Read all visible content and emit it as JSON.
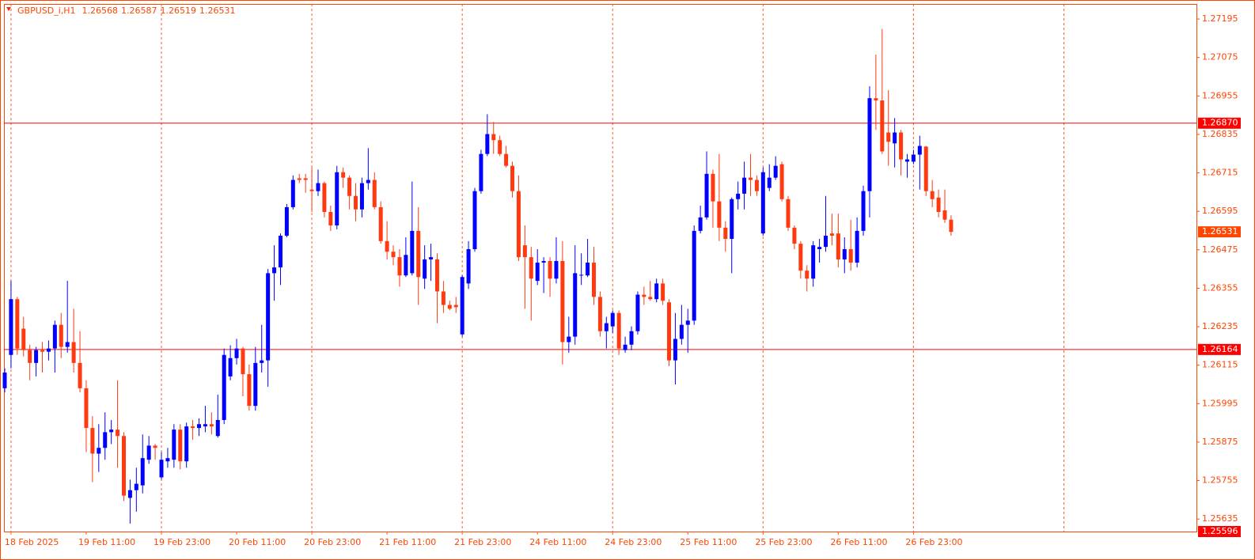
{
  "chart_data": {
    "type": "candlestick",
    "title": "GBPUSD_i,H1",
    "ohlc_info": [
      1.26568,
      1.26587,
      1.26519,
      1.26531
    ],
    "up_color": "#0000ff",
    "down_color": "#ff3a10",
    "grid_color": "#ff5a1f",
    "ylim": [
      1.25596,
      1.27242
    ],
    "yticks": [
      1.27195,
      1.27075,
      1.26955,
      {
        "value": 1.26835,
        "label": "1.26835"
      },
      1.26715,
      1.26595,
      1.26475,
      1.26355,
      1.26235,
      1.26115,
      1.25995,
      1.25875,
      1.25755,
      1.25635
    ],
    "hlines": [
      {
        "value": 1.2687,
        "label": "1.26870",
        "color": "#ff0000"
      },
      {
        "value": 1.26164,
        "label": "1.26164",
        "color": "#ff0000"
      }
    ],
    "bid": {
      "value": 1.26531,
      "label": "1.26531",
      "color": "#ff4500"
    },
    "categories": [
      null,
      "18 Feb 2025",
      null,
      null,
      null,
      null,
      null,
      null,
      null,
      null,
      null,
      null,
      null,
      "19 Feb 11:00",
      null,
      null,
      null,
      null,
      null,
      null,
      null,
      null,
      null,
      null,
      null,
      "19 Feb 23:00",
      null,
      null,
      null,
      null,
      null,
      null,
      null,
      null,
      null,
      null,
      null,
      "20 Feb 11:00",
      null,
      null,
      null,
      null,
      null,
      null,
      null,
      null,
      null,
      null,
      null,
      "20 Feb 23:00",
      null,
      null,
      null,
      null,
      null,
      null,
      null,
      null,
      null,
      null,
      null,
      "21 Feb 11:00",
      null,
      null,
      null,
      null,
      null,
      null,
      null,
      null,
      null,
      null,
      null,
      "21 Feb 23:00",
      null,
      null,
      null,
      null,
      null,
      null,
      null,
      null,
      null,
      null,
      null,
      "24 Feb 11:00",
      null,
      null,
      null,
      null,
      null,
      null,
      null,
      null,
      null,
      null,
      null,
      "24 Feb 23:00",
      null,
      null,
      null,
      null,
      null,
      null,
      null,
      null,
      null,
      null,
      null,
      "25 Feb 11:00",
      null,
      null,
      null,
      null,
      null,
      null,
      null,
      null,
      null,
      null,
      null,
      "25 Feb 23:00",
      null,
      null,
      null,
      null,
      null,
      null,
      null,
      null,
      null,
      null,
      null,
      "26 Feb 11:00",
      null,
      null,
      null,
      null,
      null,
      null,
      null,
      null,
      null,
      null,
      null,
      "26 Feb 23:00",
      null,
      null,
      null,
      null,
      null,
      null
    ],
    "open": [
      1.26043,
      1.26147,
      1.26321,
      1.26229,
      1.26162,
      1.26122,
      1.26162,
      1.26157,
      1.26167,
      1.26241,
      1.26172,
      1.26187,
      1.26122,
      1.26043,
      1.25919,
      1.25839,
      1.25857,
      1.25906,
      1.25914,
      1.25894,
      1.25701,
      1.25725,
      1.2574,
      1.2582,
      1.25864,
      1.25765,
      1.25815,
      1.2582,
      1.25914,
      1.25815,
      1.25924,
      1.25919,
      1.25924,
      1.25931,
      1.25894,
      1.25944,
      1.2608,
      1.26137,
      1.26167,
      1.26087,
      1.25988,
      1.26122,
      1.2613,
      1.26402,
      1.2642,
      1.26519,
      1.26608,
      1.26698,
      1.26698,
      1.26663,
      1.26658,
      1.26683,
      1.26593,
      1.26551,
      1.26717,
      1.267,
      1.26643,
      1.26601,
      1.26683,
      1.26693,
      1.26608,
      1.26502,
      1.26469,
      1.26452,
      1.26395,
      1.26402,
      1.26534,
      1.26385,
      1.26445,
      1.26445,
      1.26345,
      1.26303,
      1.26303,
      1.26211,
      1.2637,
      1.26477,
      1.26658,
      1.26774,
      1.26836,
      1.26817,
      1.26774,
      1.26737,
      1.26658,
      1.26489,
      1.26452,
      1.26378,
      1.26435,
      1.2644,
      1.26385,
      1.2644,
      1.26187,
      1.26204,
      1.26395,
      1.26395,
      1.26435,
      1.26328,
      1.26221,
      1.26236,
      1.26278,
      1.26162,
      1.26179,
      1.26221,
      1.26335,
      1.26328,
      1.26321,
      1.2637,
      1.26311,
      1.2613,
      1.26197,
      1.26241,
      1.26254,
      1.26534,
      1.26576,
      1.26712,
      1.26626,
      1.26544,
      1.26509,
      1.26633,
      1.2665,
      1.267,
      1.26693,
      1.26526,
      1.26668,
      1.267,
      1.26742,
      1.26633,
      1.26544,
      1.26494,
      1.2641,
      1.26385,
      1.26477,
      1.26484,
      1.26526,
      1.26526,
      1.26445,
      1.26477,
      1.26435,
      1.26534,
      1.26658,
      1.26948,
      1.26941,
      1.26841,
      1.26807,
      1.26841,
      1.2675,
      1.2675,
      1.26772,
      1.26797,
      1.26658,
      1.26638,
      1.26598,
      1.26569
    ],
    "high": [
      1.26105,
      1.26378,
      1.26328,
      1.26266,
      1.26179,
      1.26172,
      1.26187,
      1.26192,
      1.26254,
      1.26278,
      1.26378,
      1.26291,
      1.26221,
      1.26068,
      1.25956,
      1.25931,
      1.25968,
      1.25944,
      1.26068,
      1.25906,
      1.25758,
      1.25795,
      1.25899,
      1.25894,
      1.25869,
      1.25844,
      1.25857,
      1.25931,
      1.25931,
      1.25936,
      1.25944,
      1.25949,
      1.25988,
      1.25968,
      1.26023,
      1.26167,
      1.26177,
      1.26197,
      1.26172,
      1.26117,
      1.26172,
      1.26241,
      1.26415,
      1.26489,
      1.26526,
      1.26618,
      1.26707,
      1.26712,
      1.26712,
      1.26732,
      1.26725,
      1.26688,
      1.26613,
      1.26737,
      1.26732,
      1.26707,
      1.26683,
      1.267,
      1.26792,
      1.26717,
      1.26626,
      1.26564,
      1.26489,
      1.26477,
      1.26514,
      1.26688,
      1.26608,
      1.26489,
      1.26494,
      1.26464,
      1.26378,
      1.26316,
      1.26328,
      1.26395,
      1.26502,
      1.26668,
      1.26787,
      1.26898,
      1.26874,
      1.26831,
      1.26799,
      1.2675,
      1.26707,
      1.26551,
      1.26484,
      1.26477,
      1.26452,
      1.26452,
      1.26514,
      1.26502,
      1.26266,
      1.26489,
      1.26464,
      1.26509,
      1.26484,
      1.26345,
      1.26266,
      1.26286,
      1.26286,
      1.26204,
      1.26236,
      1.26345,
      1.2636,
      1.26378,
      1.26385,
      1.26385,
      1.26321,
      1.26278,
      1.26303,
      1.26291,
      1.26551,
      1.26613,
      1.26782,
      1.26725,
      1.26774,
      1.26564,
      1.26638,
      1.26688,
      1.2675,
      1.26774,
      1.26707,
      1.26732,
      1.26742,
      1.26767,
      1.2675,
      1.26643,
      1.26551,
      1.26502,
      1.26427,
      1.26502,
      1.26509,
      1.26643,
      1.26588,
      1.26588,
      1.26514,
      1.26569,
      1.26576,
      1.26675,
      1.26985,
      1.27084,
      1.27164,
      1.26973,
      1.26886,
      1.26849,
      1.26774,
      1.26787,
      1.26831,
      1.26799,
      1.26693,
      1.26663,
      1.26663,
      1.26583
    ],
    "low": [
      1.2603,
      1.26105,
      1.26147,
      1.26142,
      1.26068,
      1.2608,
      1.26092,
      1.2613,
      1.26092,
      1.26137,
      1.26154,
      1.26092,
      1.2603,
      1.25844,
      1.2575,
      1.25782,
      1.2582,
      1.25869,
      1.25795,
      1.25691,
      1.25621,
      1.25658,
      1.25715,
      1.25807,
      1.2582,
      1.25758,
      1.25795,
      1.25795,
      1.2579,
      1.25795,
      1.25882,
      1.25894,
      1.25906,
      1.25899,
      1.25889,
      1.25931,
      1.26068,
      1.26117,
      1.26018,
      1.25973,
      1.25973,
      1.26092,
      1.26048,
      1.26316,
      1.26365,
      1.26514,
      1.26601,
      1.26683,
      1.26653,
      1.26593,
      1.26643,
      1.26576,
      1.26534,
      1.26539,
      1.26668,
      1.26601,
      1.26564,
      1.26576,
      1.26663,
      1.26601,
      1.26494,
      1.26445,
      1.26427,
      1.2636,
      1.2639,
      1.26395,
      1.26303,
      1.26353,
      1.26378,
      1.26246,
      1.26278,
      1.26286,
      1.26278,
      1.26204,
      1.26353,
      1.26469,
      1.2665,
      1.26767,
      1.26774,
      1.26767,
      1.26732,
      1.26638,
      1.2644,
      1.26291,
      1.26254,
      1.26365,
      1.2634,
      1.26328,
      1.2637,
      1.26117,
      1.26154,
      1.26179,
      1.26365,
      1.2639,
      1.26303,
      1.26204,
      1.26167,
      1.26216,
      1.26147,
      1.26154,
      1.26162,
      1.26211,
      1.26303,
      1.26316,
      1.26311,
      1.26303,
      1.26112,
      1.26055,
      1.26179,
      1.26154,
      1.26241,
      1.26526,
      1.26569,
      1.26544,
      1.26502,
      1.26469,
      1.26402,
      1.26601,
      1.26601,
      1.26643,
      1.26643,
      1.26519,
      1.26658,
      1.26693,
      1.26626,
      1.26534,
      1.26477,
      1.26385,
      1.26345,
      1.2636,
      1.26435,
      1.26469,
      1.26489,
      1.2642,
      1.26402,
      1.2641,
      1.2642,
      1.26519,
      1.26576,
      1.26849,
      1.26774,
      1.26737,
      1.26732,
      1.26707,
      1.267,
      1.26742,
      1.26663,
      1.26643,
      1.26608,
      1.26576,
      1.26559,
      1.26519
    ],
    "close": [
      1.26092,
      1.26321,
      1.26167,
      1.26162,
      1.26122,
      1.26162,
      1.26157,
      1.26167,
      1.26241,
      1.26172,
      1.26187,
      1.26122,
      1.26043,
      1.25919,
      1.25839,
      1.25857,
      1.25906,
      1.25914,
      1.25894,
      1.25708,
      1.25725,
      1.25745,
      1.25825,
      1.25864,
      1.25857,
      1.2582,
      1.25825,
      1.25914,
      1.25815,
      1.25924,
      1.25919,
      1.25931,
      1.25931,
      1.25924,
      1.25944,
      1.26147,
      1.26137,
      1.26167,
      1.26087,
      1.25988,
      1.26122,
      1.2613,
      1.26402,
      1.2642,
      1.26519,
      1.26608,
      1.26693,
      1.26693,
      1.26693,
      1.26658,
      1.26683,
      1.26593,
      1.26551,
      1.26717,
      1.267,
      1.26643,
      1.26601,
      1.26683,
      1.26693,
      1.26608,
      1.26502,
      1.26469,
      1.26452,
      1.26395,
      1.26459,
      1.26534,
      1.2639,
      1.26445,
      1.26452,
      1.26345,
      1.26303,
      1.26291,
      1.26296,
      1.2639,
      1.26477,
      1.26658,
      1.26774,
      1.26836,
      1.26817,
      1.26774,
      1.26737,
      1.26658,
      1.26452,
      1.26452,
      1.26385,
      1.26435,
      1.2644,
      1.26385,
      1.2644,
      1.26187,
      1.26204,
      1.26402,
      1.26397,
      1.26435,
      1.26328,
      1.26221,
      1.26246,
      1.26278,
      1.26167,
      1.26179,
      1.26221,
      1.26335,
      1.26328,
      1.26321,
      1.2637,
      1.26316,
      1.2613,
      1.26197,
      1.26241,
      1.26254,
      1.26534,
      1.26576,
      1.26712,
      1.26626,
      1.26544,
      1.26509,
      1.26633,
      1.2665,
      1.267,
      1.26693,
      1.26658,
      1.26717,
      1.267,
      1.26737,
      1.26633,
      1.26544,
      1.26494,
      1.2641,
      1.26385,
      1.26489,
      1.26484,
      1.26519,
      1.26519,
      1.26445,
      1.26477,
      1.26435,
      1.26534,
      1.26658,
      1.26948,
      1.26941,
      1.26782,
      1.26812,
      1.26841,
      1.26757,
      1.26757,
      1.26772,
      1.26799,
      1.26658,
      1.26633,
      1.26593,
      1.26569,
      1.26531
    ]
  }
}
